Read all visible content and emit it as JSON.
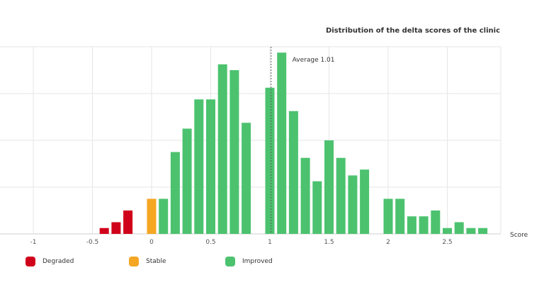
{
  "chart_data": {
    "type": "bar",
    "title": "Distribution of the delta scores of the clinic",
    "xlabel": "Score",
    "ylabel": "",
    "xlim": [
      -1.2,
      2.95
    ],
    "ylim": [
      0,
      32
    ],
    "x_ticks": [
      "-1",
      "-0.5",
      "0",
      "0.5",
      "1",
      "1.5",
      "2",
      "2.5"
    ],
    "grid": true,
    "average": {
      "value": 1.01,
      "label": "Average 1.01"
    },
    "legend_position": "bottom-left",
    "series": [
      {
        "name": "Degraded",
        "color": "#d0021b",
        "x": [
          -0.4,
          -0.3,
          -0.2
        ],
        "values": [
          1,
          2,
          4
        ]
      },
      {
        "name": "Stable",
        "color": "#f5a623",
        "x": [
          0
        ],
        "values": [
          6
        ]
      },
      {
        "name": "Improved",
        "color": "#4cc26f",
        "x": [
          0.1,
          0.2,
          0.3,
          0.4,
          0.5,
          0.6,
          0.7,
          0.8,
          1.0,
          1.1,
          1.2,
          1.3,
          1.4,
          1.5,
          1.6,
          1.7,
          1.8,
          2.0,
          2.1,
          2.2,
          2.3,
          2.4,
          2.5,
          2.6,
          2.7,
          2.8
        ],
        "values": [
          6,
          14,
          18,
          23,
          23,
          29,
          28,
          19,
          25,
          31,
          21,
          13,
          9,
          16,
          13,
          10,
          11,
          6,
          6,
          3,
          3,
          4,
          1,
          2,
          1,
          1
        ]
      }
    ]
  }
}
